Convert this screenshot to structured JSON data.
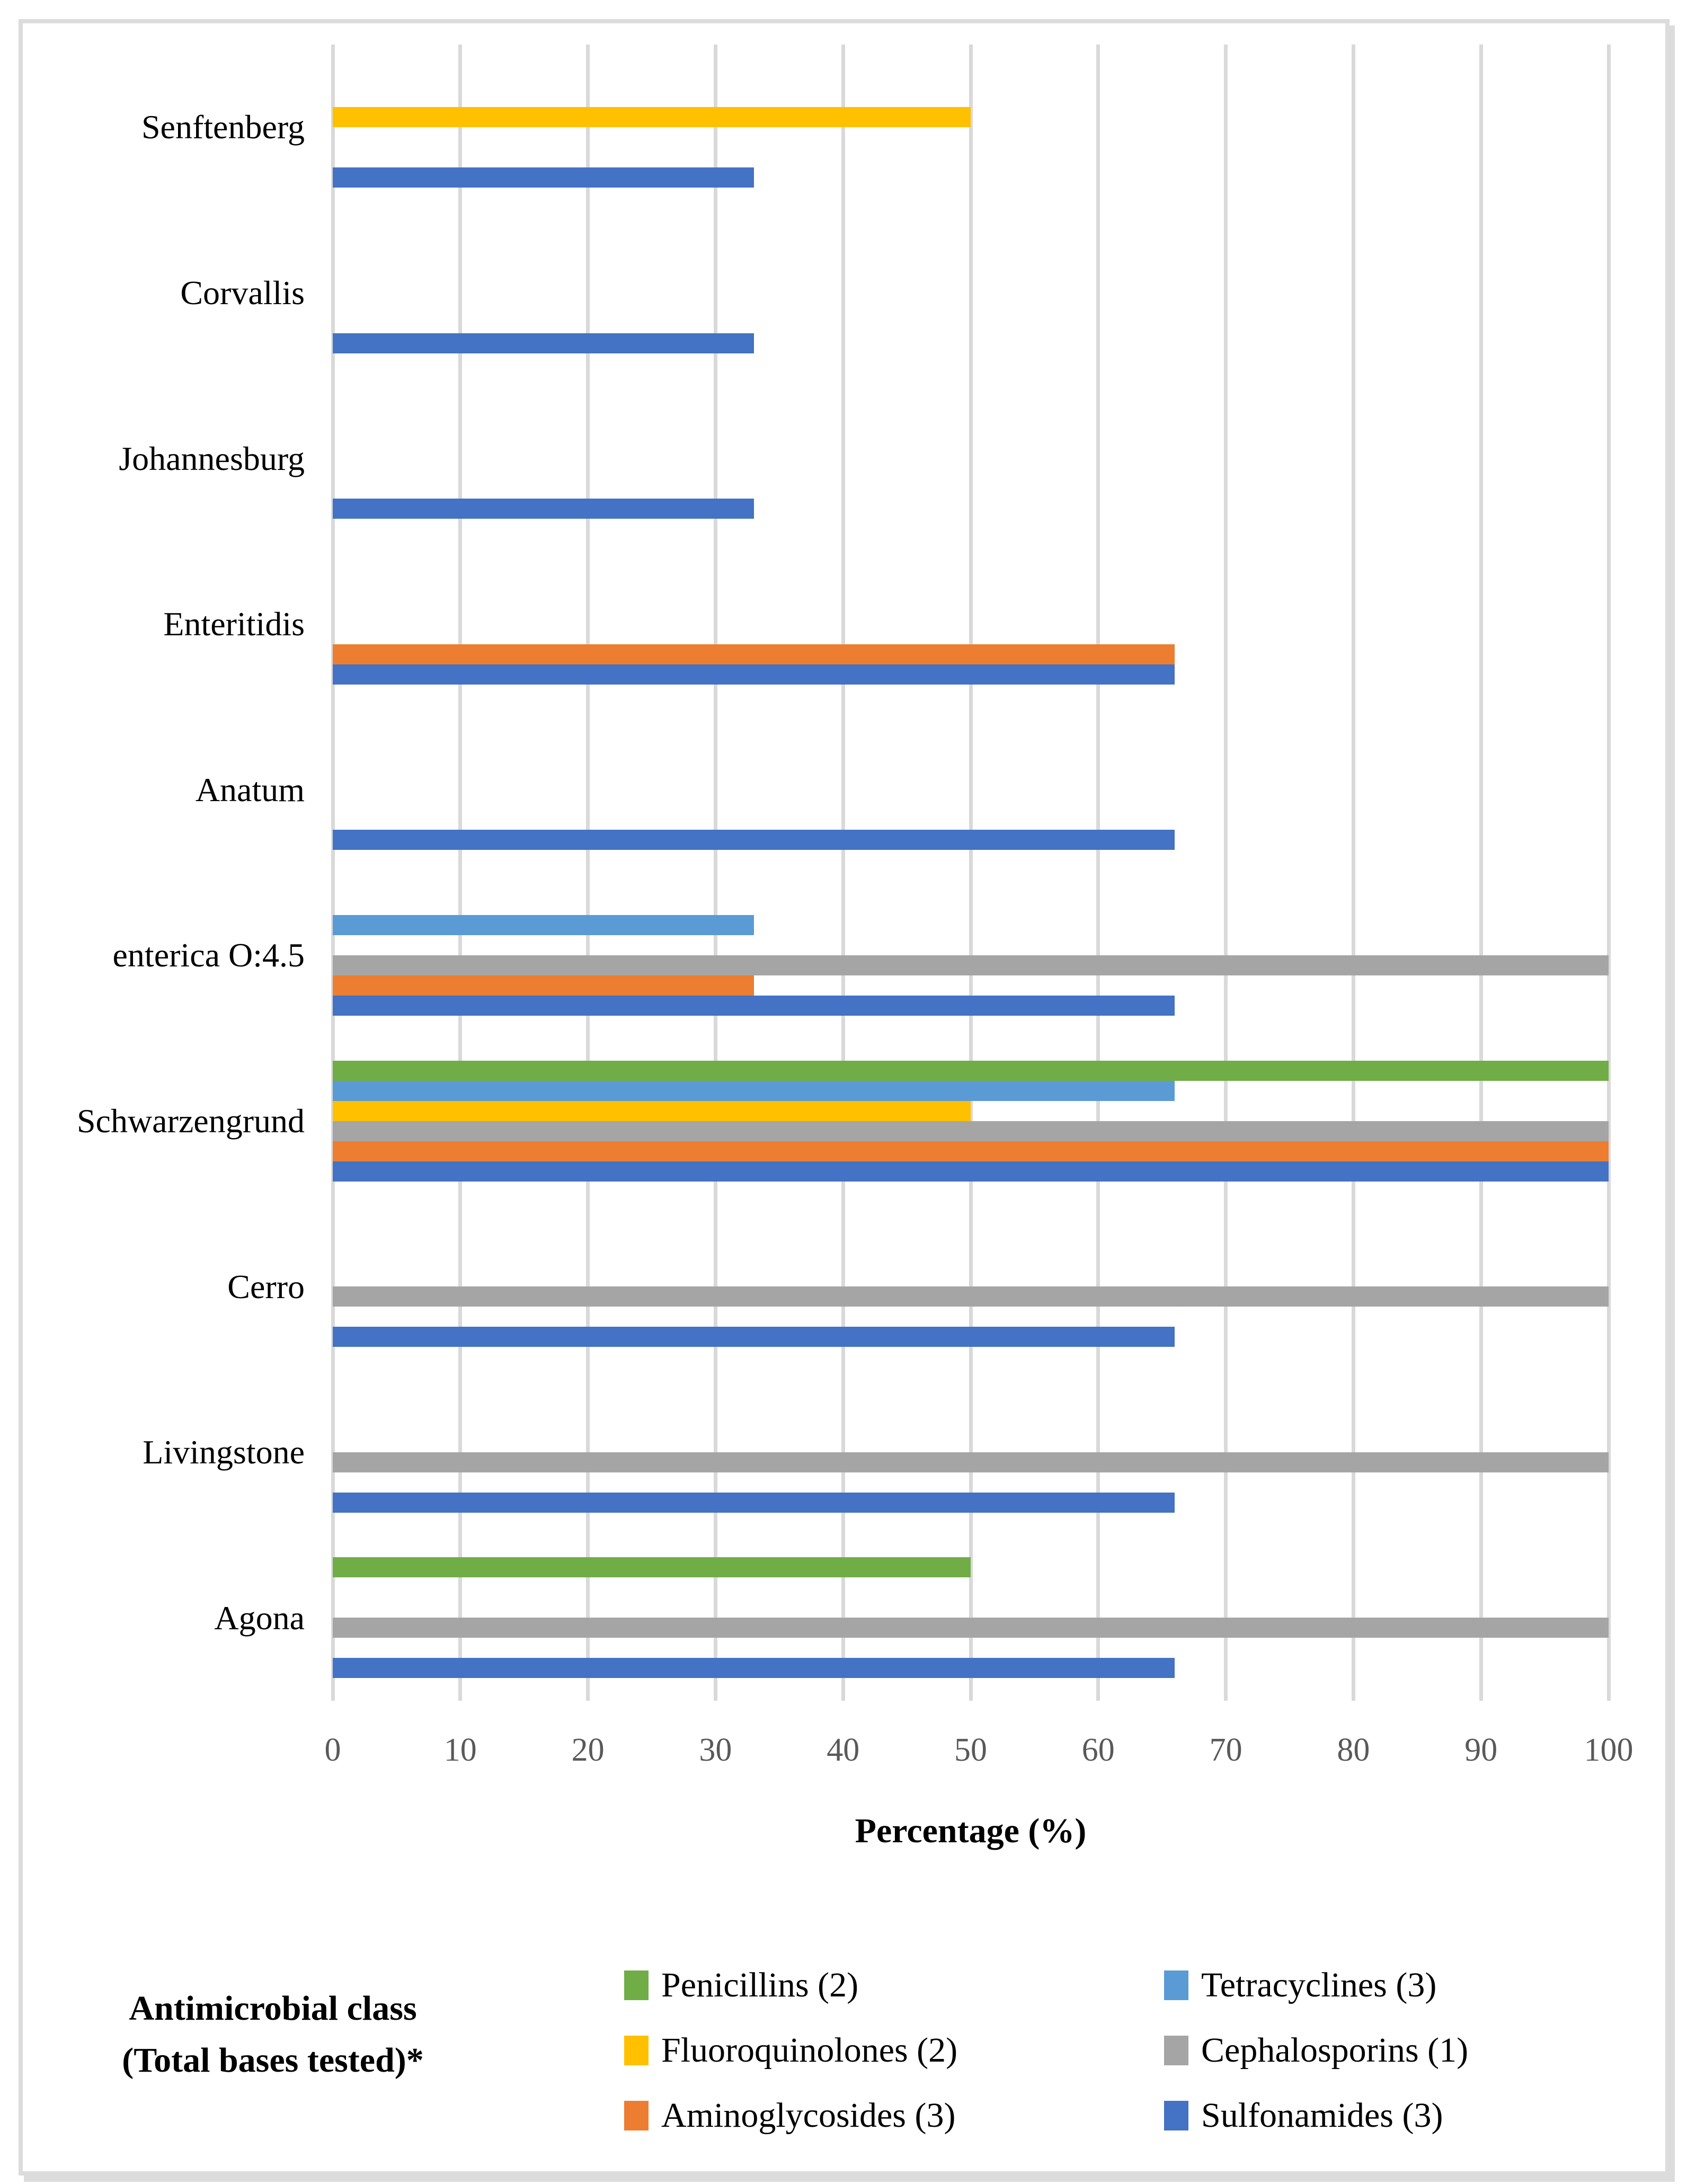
{
  "figure": {
    "background_color": "#ffffff",
    "border_color": "#dcdcdc"
  },
  "chart_data": {
    "type": "bar",
    "orientation": "horizontal",
    "title": "",
    "xlabel": "Percentage (%)",
    "ylabel": "",
    "xlim": [
      0,
      100
    ],
    "xticks": [
      0,
      10,
      20,
      30,
      40,
      50,
      60,
      70,
      80,
      90,
      100
    ],
    "grid": true,
    "gridline_color": "#d9d9d9",
    "tick_label_color": "#595959",
    "categories": [
      "Senftenberg",
      "Corvallis",
      "Johannesburg",
      "Enteritidis",
      "Anatum",
      "enterica O:4.5",
      "Schwarzengrund",
      "Cerro",
      "Livingstone",
      "Agona"
    ],
    "series": [
      {
        "name": "Penicillins (2)",
        "color": "#70AD47",
        "values": [
          0,
          0,
          0,
          0,
          0,
          0,
          100,
          0,
          0,
          50
        ]
      },
      {
        "name": "Tetracyclines (3)",
        "color": "#5B9BD5",
        "values": [
          0,
          0,
          0,
          0,
          0,
          33,
          66,
          0,
          0,
          0
        ]
      },
      {
        "name": "Fluoroquinolones (2)",
        "color": "#FFC000",
        "values": [
          50,
          0,
          0,
          0,
          0,
          0,
          50,
          0,
          0,
          0
        ]
      },
      {
        "name": "Cephalosporins (1)",
        "color": "#A5A5A5",
        "values": [
          0,
          0,
          0,
          0,
          0,
          100,
          100,
          100,
          100,
          100
        ]
      },
      {
        "name": "Aminoglycosides (3)",
        "color": "#ED7D31",
        "values": [
          0,
          0,
          0,
          66,
          0,
          33,
          100,
          0,
          0,
          0
        ]
      },
      {
        "name": "Sulfonamides (3)",
        "color": "#4472C4",
        "values": [
          33,
          33,
          33,
          66,
          66,
          66,
          100,
          66,
          66,
          66
        ]
      }
    ],
    "legend": {
      "position": "bottom",
      "columns": 2,
      "title_line1": "Antimicrobial class",
      "title_line2": "(Total bases tested)*"
    }
  }
}
